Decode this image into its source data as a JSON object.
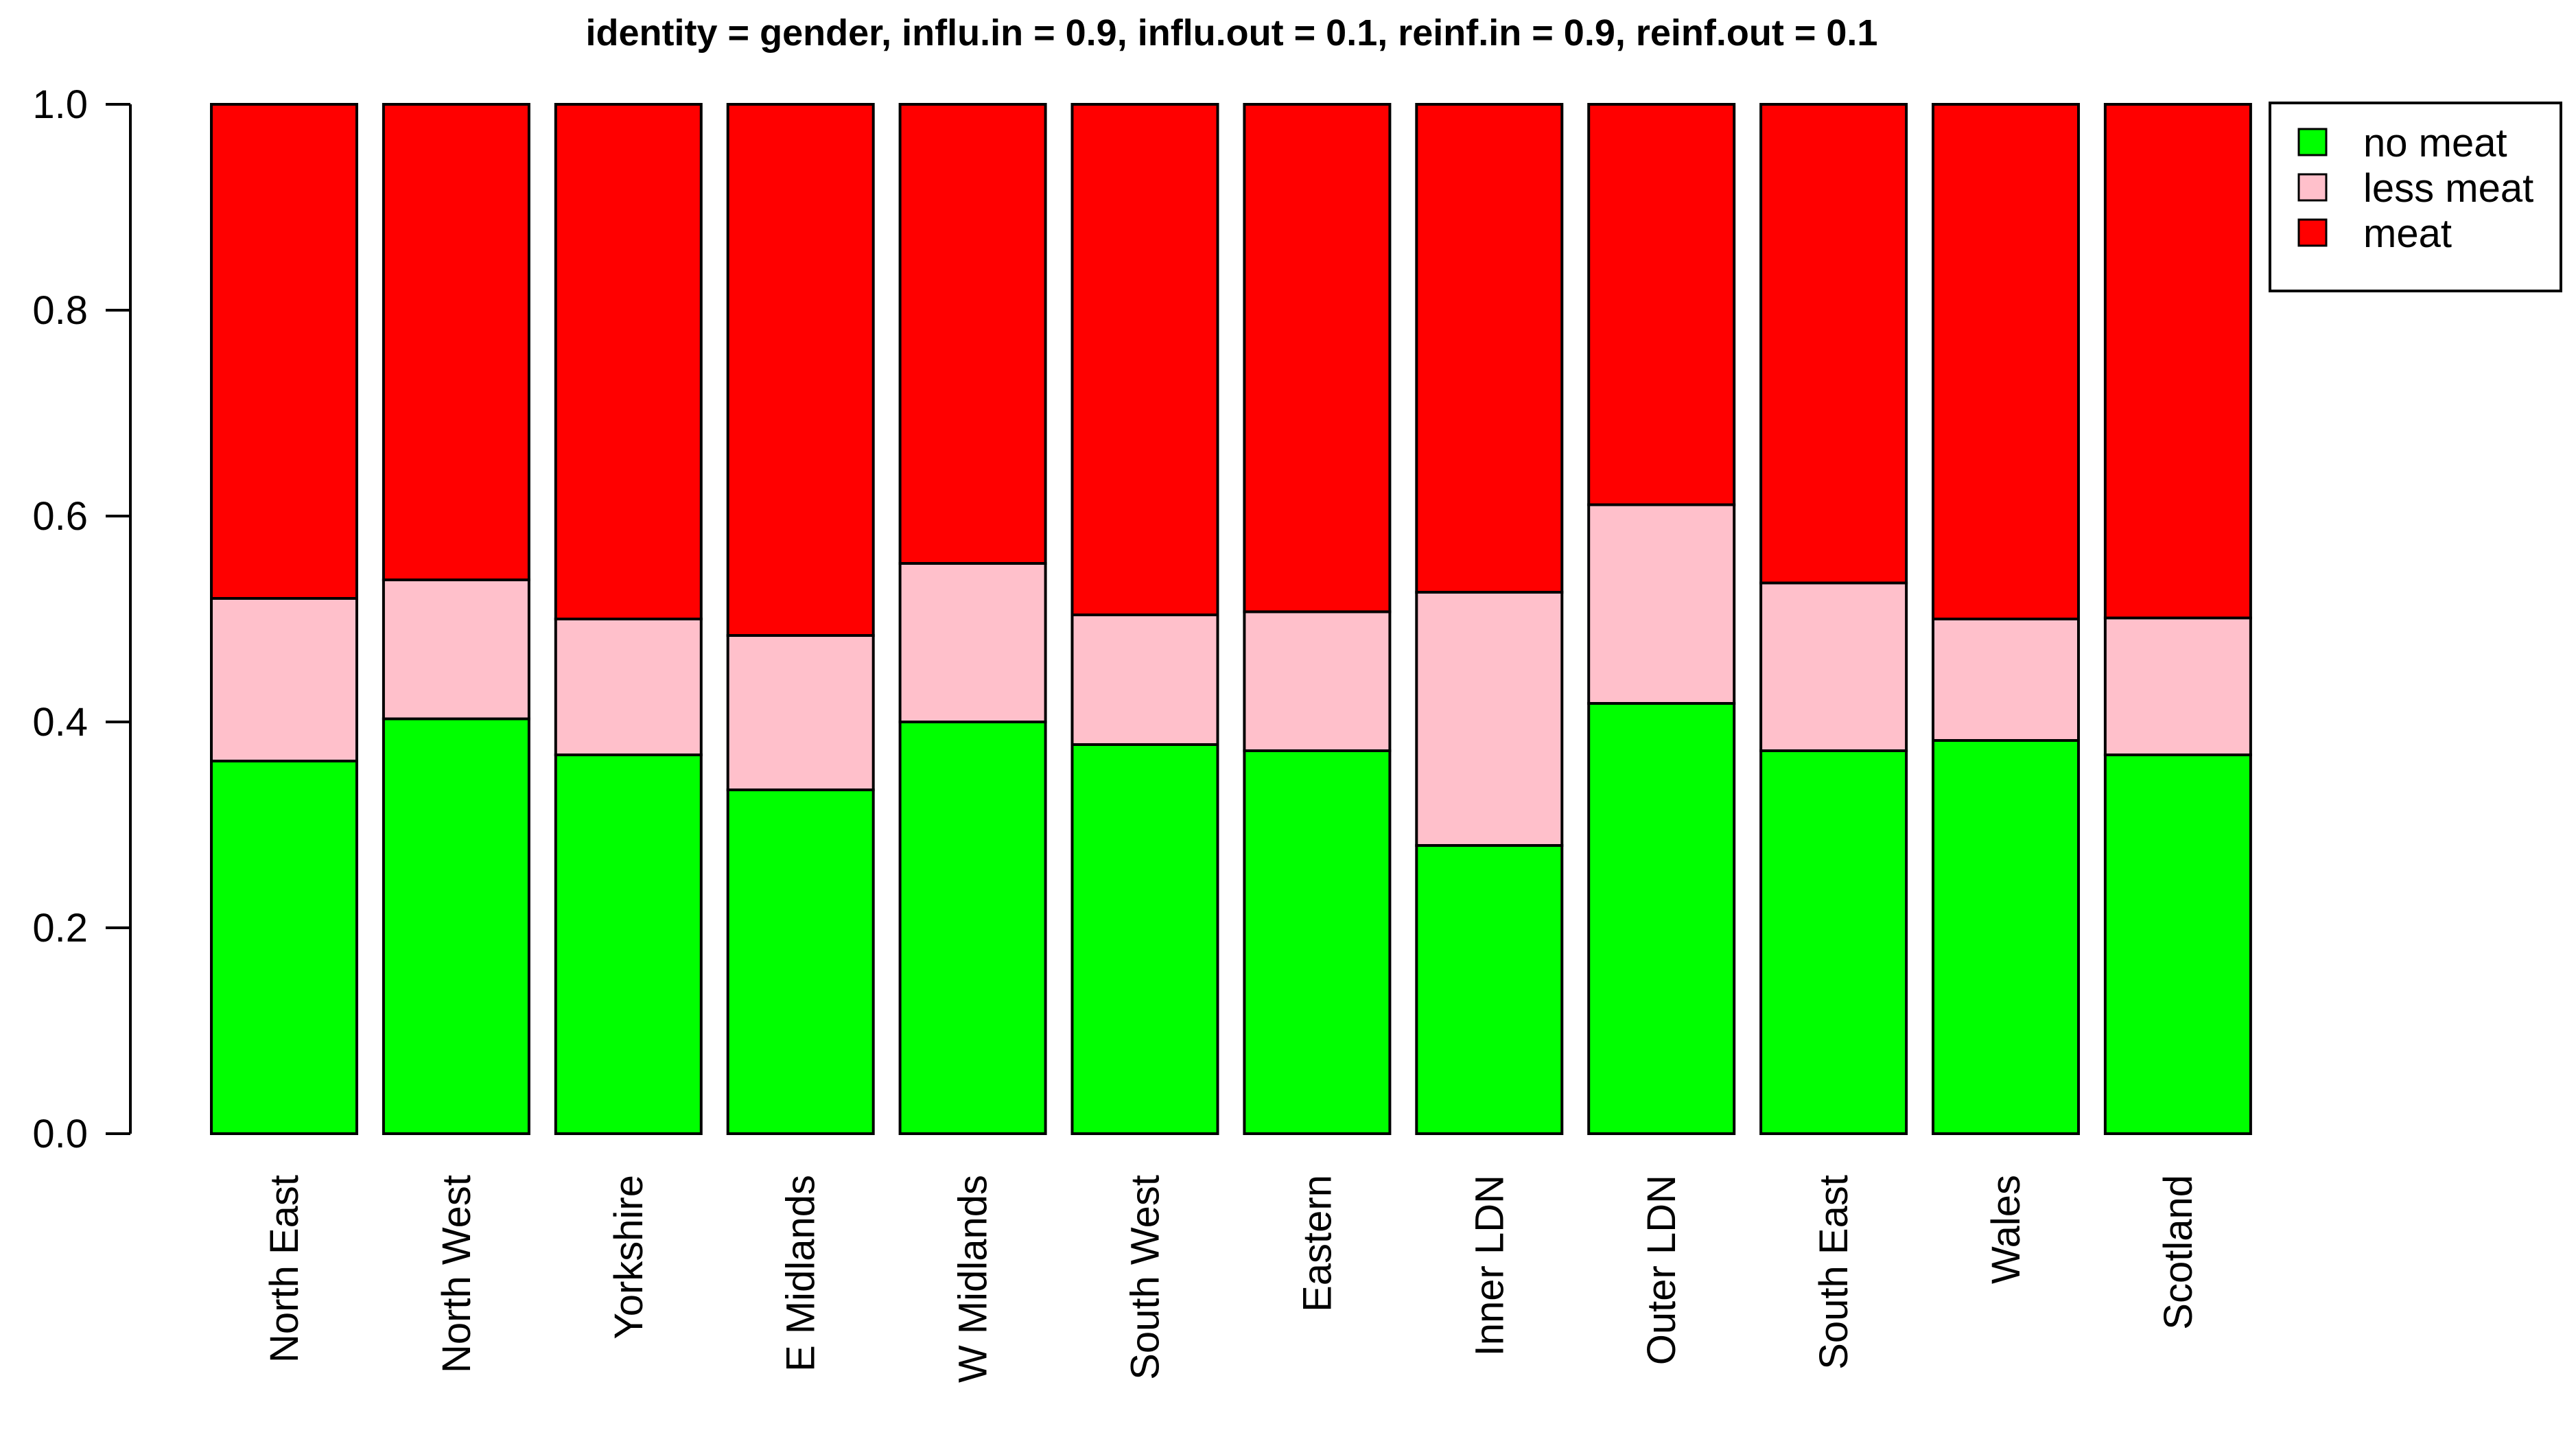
{
  "chart_data": {
    "type": "bar",
    "stacked": true,
    "title": "identity = gender, influ.in = 0.9, influ.out = 0.1, reinf.in = 0.9, reinf.out = 0.1",
    "xlabel": "",
    "ylabel": "",
    "ylim": [
      0,
      1
    ],
    "yticks": [
      "0.0",
      "0.2",
      "0.4",
      "0.6",
      "0.8",
      "1.0"
    ],
    "categories": [
      "North East",
      "North West",
      "Yorkshire",
      "E Midlands",
      "W Midlands",
      "South West",
      "Eastern",
      "Inner LDN",
      "Outer LDN",
      "South East",
      "Wales",
      "Scotland"
    ],
    "series": [
      {
        "name": "no meat",
        "color": "#00ff00",
        "values": [
          0.362,
          0.403,
          0.368,
          0.334,
          0.4,
          0.378,
          0.372,
          0.28,
          0.418,
          0.372,
          0.382,
          0.368
        ]
      },
      {
        "name": "less meat",
        "color": "#ffc0cb",
        "values": [
          0.158,
          0.135,
          0.132,
          0.15,
          0.154,
          0.126,
          0.135,
          0.246,
          0.193,
          0.163,
          0.118,
          0.133
        ]
      },
      {
        "name": "meat",
        "color": "#ff0000",
        "values": [
          0.48,
          0.462,
          0.5,
          0.516,
          0.446,
          0.496,
          0.493,
          0.474,
          0.389,
          0.465,
          0.5,
          0.499
        ]
      }
    ],
    "legend": {
      "position": "top-right",
      "order": [
        "no meat",
        "less meat",
        "meat"
      ]
    },
    "grid": false
  }
}
